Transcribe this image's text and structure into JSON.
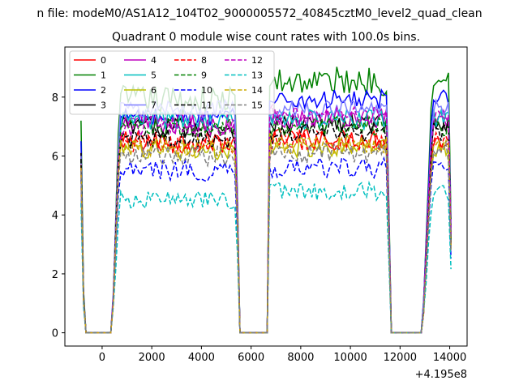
{
  "chart_data": {
    "type": "line",
    "suptitle": "n file: modeM0/AS1A12_104T02_9000005572_40845cztM0_level2_quad_clean",
    "title": "Quadrant 0 module wise count rates with 100.0s bins.",
    "xlabel": "",
    "ylabel": "",
    "offset_text": "+4.195e8",
    "xlim": [
      -1500,
      14700
    ],
    "ylim": [
      -0.45,
      9.7
    ],
    "xticks": [
      0,
      2000,
      4000,
      6000,
      8000,
      10000,
      12000,
      14000
    ],
    "xtick_labels": [
      "0",
      "2000",
      "4000",
      "6000",
      "8000",
      "10000",
      "12000",
      "14000"
    ],
    "yticks": [
      0,
      2,
      4,
      6,
      8
    ],
    "ytick_labels": [
      "0",
      "2",
      "4",
      "6",
      "8"
    ],
    "grid": false,
    "legend_position": "top-left",
    "segments": [
      {
        "start": -850,
        "end": -700,
        "shape": "drop",
        "from_scale": 1.0,
        "to_scale": 0.85
      },
      {
        "start": -700,
        "end": 400,
        "shape": "zero"
      },
      {
        "start": 400,
        "end": 700,
        "shape": "rise"
      },
      {
        "start": 700,
        "end": 5400,
        "shape": "plateau"
      },
      {
        "start": 5400,
        "end": 5500,
        "shape": "fall"
      },
      {
        "start": 5500,
        "end": 6700,
        "shape": "zero"
      },
      {
        "start": 6700,
        "end": 6700,
        "shape": "rise_step"
      },
      {
        "start": 6700,
        "end": 11500,
        "shape": "plateau"
      },
      {
        "start": 11500,
        "end": 11600,
        "shape": "fall"
      },
      {
        "start": 11600,
        "end": 12900,
        "shape": "zero"
      },
      {
        "start": 12900,
        "end": 13300,
        "shape": "rise"
      },
      {
        "start": 13300,
        "end": 14050,
        "shape": "plateau_end"
      }
    ],
    "series": [
      {
        "name": "0",
        "color": "#ff0000",
        "dash": "solid",
        "level": 6.5,
        "level2": 6.6,
        "noise": 0.35,
        "start": 6.1
      },
      {
        "name": "1",
        "color": "#008000",
        "dash": "solid",
        "level": 7.9,
        "level2": 8.55,
        "noise": 0.5,
        "start": 7.2
      },
      {
        "name": "2",
        "color": "#0000ff",
        "dash": "solid",
        "level": 7.3,
        "level2": 7.9,
        "noise": 0.35,
        "start": 6.5
      },
      {
        "name": "3",
        "color": "#000000",
        "dash": "solid",
        "level": 7.0,
        "level2": 7.1,
        "noise": 0.35,
        "start": 6.1
      },
      {
        "name": "4",
        "color": "#bf00bf",
        "dash": "solid",
        "level": 7.1,
        "level2": 7.3,
        "noise": 0.35,
        "start": 5.9
      },
      {
        "name": "5",
        "color": "#00bfbf",
        "dash": "solid",
        "level": 7.2,
        "level2": 7.25,
        "noise": 0.35,
        "start": 5.8
      },
      {
        "name": "6",
        "color": "#bfbf00",
        "dash": "solid",
        "level": 6.2,
        "level2": 6.3,
        "noise": 0.35,
        "start": 5.5
      },
      {
        "name": "7",
        "color": "#7f7fff",
        "dash": "solid",
        "level": 7.6,
        "level2": 7.6,
        "noise": 0.3,
        "start": 6.0
      },
      {
        "name": "8",
        "color": "#ff0000",
        "dash": "dashed",
        "level": 6.4,
        "level2": 6.5,
        "noise": 0.35,
        "start": 5.7
      },
      {
        "name": "9",
        "color": "#008000",
        "dash": "dashed",
        "level": 6.9,
        "level2": 7.0,
        "noise": 0.35,
        "start": 5.9
      },
      {
        "name": "10",
        "color": "#0000ff",
        "dash": "dashed",
        "level": 5.5,
        "level2": 5.6,
        "noise": 0.35,
        "start": 5.2
      },
      {
        "name": "11",
        "color": "#000000",
        "dash": "dashed",
        "level": 6.6,
        "level2": 6.8,
        "noise": 0.35,
        "start": 5.9
      },
      {
        "name": "12",
        "color": "#bf00bf",
        "dash": "dashed",
        "level": 7.0,
        "level2": 7.4,
        "noise": 0.35,
        "start": 5.6
      },
      {
        "name": "13",
        "color": "#00bfbf",
        "dash": "dashed",
        "level": 4.5,
        "level2": 4.8,
        "noise": 0.3,
        "start": 4.4
      },
      {
        "name": "14",
        "color": "#ccaa00",
        "dash": "dashed",
        "level": 6.3,
        "level2": 6.4,
        "noise": 0.35,
        "start": 5.6
      },
      {
        "name": "15",
        "color": "#7f7f7f",
        "dash": "dashed",
        "level": 6.0,
        "level2": 6.1,
        "noise": 0.35,
        "start": 5.5
      }
    ]
  }
}
